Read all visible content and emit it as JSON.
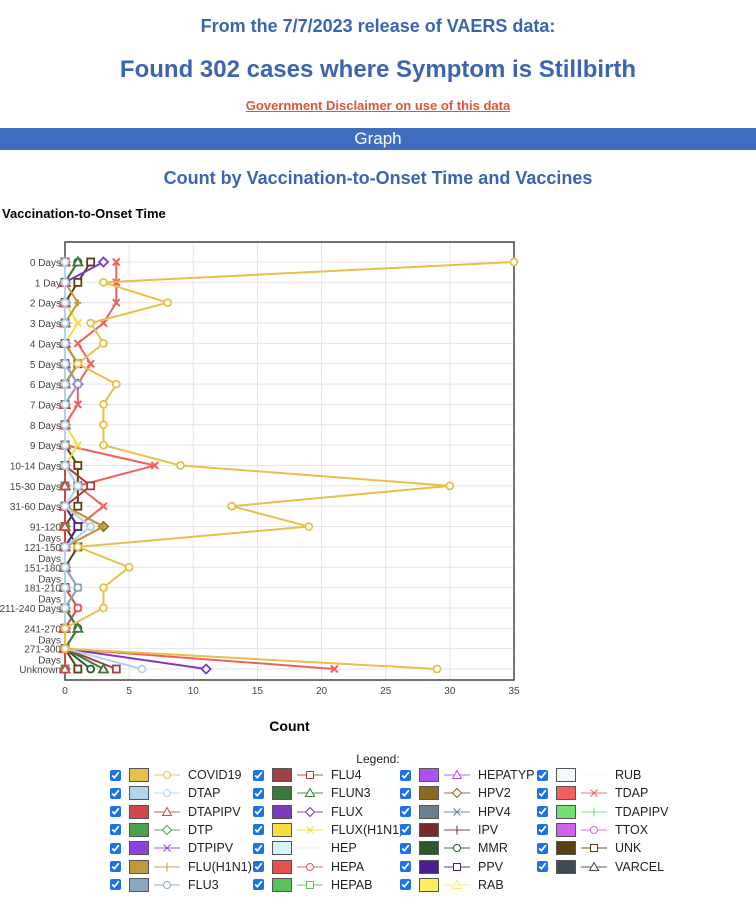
{
  "header": {
    "release": "From the 7/7/2023 release of VAERS data:",
    "found": "Found 302 cases where Symptom is Stillbirth",
    "disclaimer": "Government Disclaimer on use of this data",
    "section": "Graph"
  },
  "chart_data": {
    "type": "line",
    "title": "Count by Vaccination-to-Onset Time and Vaccines",
    "ylabel": "Vaccination-to-Onset Time",
    "xlabel": "Count",
    "xlim": [
      0,
      35
    ],
    "xticks": [
      0,
      5,
      10,
      15,
      20,
      25,
      30,
      35
    ],
    "grid": true,
    "legend_title": "Legend:",
    "legend_placement": "bottom",
    "categories": [
      "0 Days",
      "1 Day",
      "2 Days",
      "3 Days",
      "4 Days",
      "5 Days",
      "6 Days",
      "7 Days",
      "8 Days",
      "9 Days",
      "10-14 Days",
      "15-30 Days",
      "31-60 Days",
      "91-120 Days",
      "121-150 Days",
      "151-180 Days",
      "181-210 Days",
      "211-240 Days",
      "241-270 Days",
      "271-300 Days",
      "Unknown"
    ],
    "series": [
      {
        "name": "COVID19",
        "color": "#e6c04a",
        "marker": "circle",
        "values": [
          35,
          3,
          8,
          2,
          3,
          1,
          4,
          3,
          3,
          3,
          9,
          30,
          13,
          19,
          1,
          5,
          3,
          3,
          0,
          0,
          29
        ]
      },
      {
        "name": "DTAP",
        "color": "#b0d4ee",
        "marker": "circle",
        "values": [
          0,
          0,
          0,
          0,
          0,
          0,
          0,
          0,
          0,
          0,
          0,
          1,
          0,
          2,
          0,
          0,
          0,
          0,
          0,
          0,
          6
        ]
      },
      {
        "name": "DTAPIPV",
        "color": "#d04848",
        "marker": "triangle",
        "values": [
          0,
          0,
          0,
          0,
          0,
          0,
          0,
          0,
          0,
          0,
          0,
          0,
          0,
          0,
          0,
          0,
          0,
          0,
          0,
          0,
          0
        ]
      },
      {
        "name": "DTP",
        "color": "#4aa050",
        "marker": "diamond",
        "values": [
          0,
          0,
          0,
          0,
          0,
          0,
          0,
          0,
          0,
          0,
          0,
          0,
          0,
          0,
          0,
          0,
          0,
          0,
          0,
          0,
          0
        ]
      },
      {
        "name": "DTPIPV",
        "color": "#9040e0",
        "marker": "x",
        "values": [
          0,
          0,
          0,
          0,
          0,
          0,
          0,
          0,
          0,
          0,
          0,
          0,
          0,
          0,
          0,
          0,
          0,
          0,
          0,
          0,
          0
        ]
      },
      {
        "name": "FLU(H1N1)",
        "color": "#c09a3a",
        "marker": "plus",
        "values": [
          0,
          0,
          1,
          0,
          0,
          1,
          0,
          0,
          0,
          0,
          0,
          0,
          0,
          3,
          0,
          0,
          0,
          0,
          0,
          0,
          0
        ]
      },
      {
        "name": "FLU3",
        "color": "#8aa8c4",
        "marker": "circle",
        "values": [
          0,
          0,
          0,
          0,
          0,
          0,
          1,
          0,
          0,
          0,
          0,
          1,
          0,
          2,
          0,
          0,
          1,
          0,
          0,
          0,
          0
        ]
      },
      {
        "name": "FLU4",
        "color": "#a04040",
        "marker": "square",
        "values": [
          0,
          0,
          0,
          0,
          0,
          0,
          0,
          0,
          0,
          0,
          0,
          2,
          0,
          0,
          0,
          0,
          0,
          0,
          0,
          0,
          4
        ]
      },
      {
        "name": "FLUN3",
        "color": "#3a7a3a",
        "marker": "triangle",
        "values": [
          1,
          0,
          0,
          0,
          0,
          0,
          0,
          0,
          0,
          0,
          0,
          0,
          0,
          0,
          0,
          0,
          0,
          0,
          1,
          0,
          3
        ]
      },
      {
        "name": "FLUX",
        "color": "#7a3ac0",
        "marker": "diamond",
        "values": [
          3,
          0,
          0,
          0,
          0,
          0,
          1,
          0,
          0,
          0,
          0,
          0,
          0,
          0,
          0,
          0,
          0,
          0,
          0,
          0,
          11
        ]
      },
      {
        "name": "FLUX(H1N1)",
        "color": "#f5dc40",
        "marker": "x",
        "values": [
          0,
          0,
          0,
          1,
          0,
          0,
          0,
          0,
          0,
          1,
          0,
          0,
          0,
          0,
          0,
          0,
          0,
          0,
          0,
          0,
          0
        ]
      },
      {
        "name": "HEP",
        "color": "#d8f4f8",
        "marker": "none",
        "values": [
          0,
          0,
          0,
          0,
          0,
          0,
          0,
          0,
          0,
          0,
          0,
          0,
          0,
          0,
          0,
          0,
          0,
          0,
          0,
          0,
          0
        ]
      },
      {
        "name": "HEPA",
        "color": "#e85050",
        "marker": "circle",
        "values": [
          0,
          0,
          0,
          0,
          0,
          0,
          0,
          0,
          0,
          0,
          0,
          0,
          0,
          0,
          0,
          0,
          0,
          1,
          0,
          0,
          0
        ]
      },
      {
        "name": "HEPAB",
        "color": "#5ac05a",
        "marker": "square",
        "values": [
          0,
          0,
          0,
          0,
          0,
          0,
          0,
          0,
          0,
          0,
          0,
          0,
          0,
          0,
          0,
          0,
          0,
          0,
          0,
          0,
          0
        ]
      },
      {
        "name": "HEPATYP",
        "color": "#b050f0",
        "marker": "triangle",
        "values": [
          0,
          0,
          0,
          0,
          0,
          0,
          0,
          0,
          0,
          0,
          0,
          0,
          0,
          0,
          0,
          0,
          0,
          0,
          0,
          0,
          0
        ]
      },
      {
        "name": "HPV2",
        "color": "#8a6a20",
        "marker": "diamond",
        "values": [
          0,
          0,
          0,
          0,
          0,
          0,
          0,
          0,
          0,
          0,
          0,
          0,
          0,
          3,
          0,
          0,
          0,
          0,
          0,
          0,
          0
        ]
      },
      {
        "name": "HPV4",
        "color": "#6a8090",
        "marker": "x",
        "values": [
          0,
          0,
          0,
          0,
          0,
          0,
          0,
          0,
          0,
          0,
          0,
          0,
          0,
          0,
          0,
          0,
          1,
          0,
          0,
          0,
          0
        ]
      },
      {
        "name": "IPV",
        "color": "#7a2a2a",
        "marker": "plus",
        "values": [
          0,
          0,
          0,
          0,
          0,
          1,
          0,
          0,
          0,
          0,
          0,
          0,
          0,
          0,
          0,
          0,
          0,
          0,
          0,
          0,
          0
        ]
      },
      {
        "name": "MMR",
        "color": "#2a5a2a",
        "marker": "circle",
        "values": [
          1,
          0,
          0,
          0,
          0,
          0,
          0,
          0,
          0,
          0,
          0,
          0,
          0,
          0,
          0,
          0,
          0,
          0,
          1,
          0,
          2
        ]
      },
      {
        "name": "PPV",
        "color": "#4a2090",
        "marker": "square",
        "values": [
          0,
          0,
          0,
          0,
          0,
          0,
          0,
          0,
          0,
          0,
          0,
          0,
          0,
          1,
          0,
          0,
          0,
          0,
          0,
          0,
          0
        ]
      },
      {
        "name": "RAB",
        "color": "#f8f060",
        "marker": "triangle",
        "values": [
          0,
          0,
          0,
          0,
          0,
          0,
          0,
          0,
          0,
          0,
          0,
          0,
          0,
          0,
          0,
          0,
          0,
          0,
          0,
          0,
          0
        ]
      },
      {
        "name": "RUB",
        "color": "#f4f8fa",
        "marker": "none",
        "values": [
          0,
          0,
          0,
          0,
          0,
          0,
          0,
          0,
          0,
          0,
          0,
          0,
          0,
          0,
          0,
          0,
          0,
          0,
          0,
          0,
          0
        ]
      },
      {
        "name": "TDAP",
        "color": "#f06060",
        "marker": "x",
        "values": [
          4,
          4,
          4,
          3,
          1,
          2,
          1,
          1,
          0,
          0,
          7,
          1,
          3,
          1,
          0,
          0,
          0,
          1,
          0,
          0,
          21
        ]
      },
      {
        "name": "TDAPIPV",
        "color": "#70e070",
        "marker": "plus",
        "values": [
          0,
          0,
          0,
          0,
          0,
          0,
          0,
          0,
          0,
          0,
          0,
          0,
          0,
          0,
          0,
          0,
          0,
          0,
          0,
          0,
          0
        ]
      },
      {
        "name": "TTOX",
        "color": "#d060f0",
        "marker": "circle",
        "values": [
          0,
          0,
          0,
          0,
          0,
          0,
          0,
          0,
          0,
          0,
          0,
          0,
          0,
          0,
          0,
          0,
          0,
          0,
          0,
          0,
          0
        ]
      },
      {
        "name": "UNK",
        "color": "#5a4010",
        "marker": "square",
        "values": [
          2,
          1,
          0,
          0,
          0,
          1,
          0,
          0,
          0,
          0,
          1,
          1,
          1,
          0,
          1,
          0,
          0,
          0,
          0,
          0,
          1
        ]
      },
      {
        "name": "VARCEL",
        "color": "#404a55",
        "marker": "triangle",
        "values": [
          0,
          0,
          0,
          0,
          0,
          0,
          0,
          0,
          0,
          0,
          0,
          0,
          0,
          0,
          0,
          0,
          0,
          0,
          0,
          0,
          0
        ]
      }
    ]
  }
}
